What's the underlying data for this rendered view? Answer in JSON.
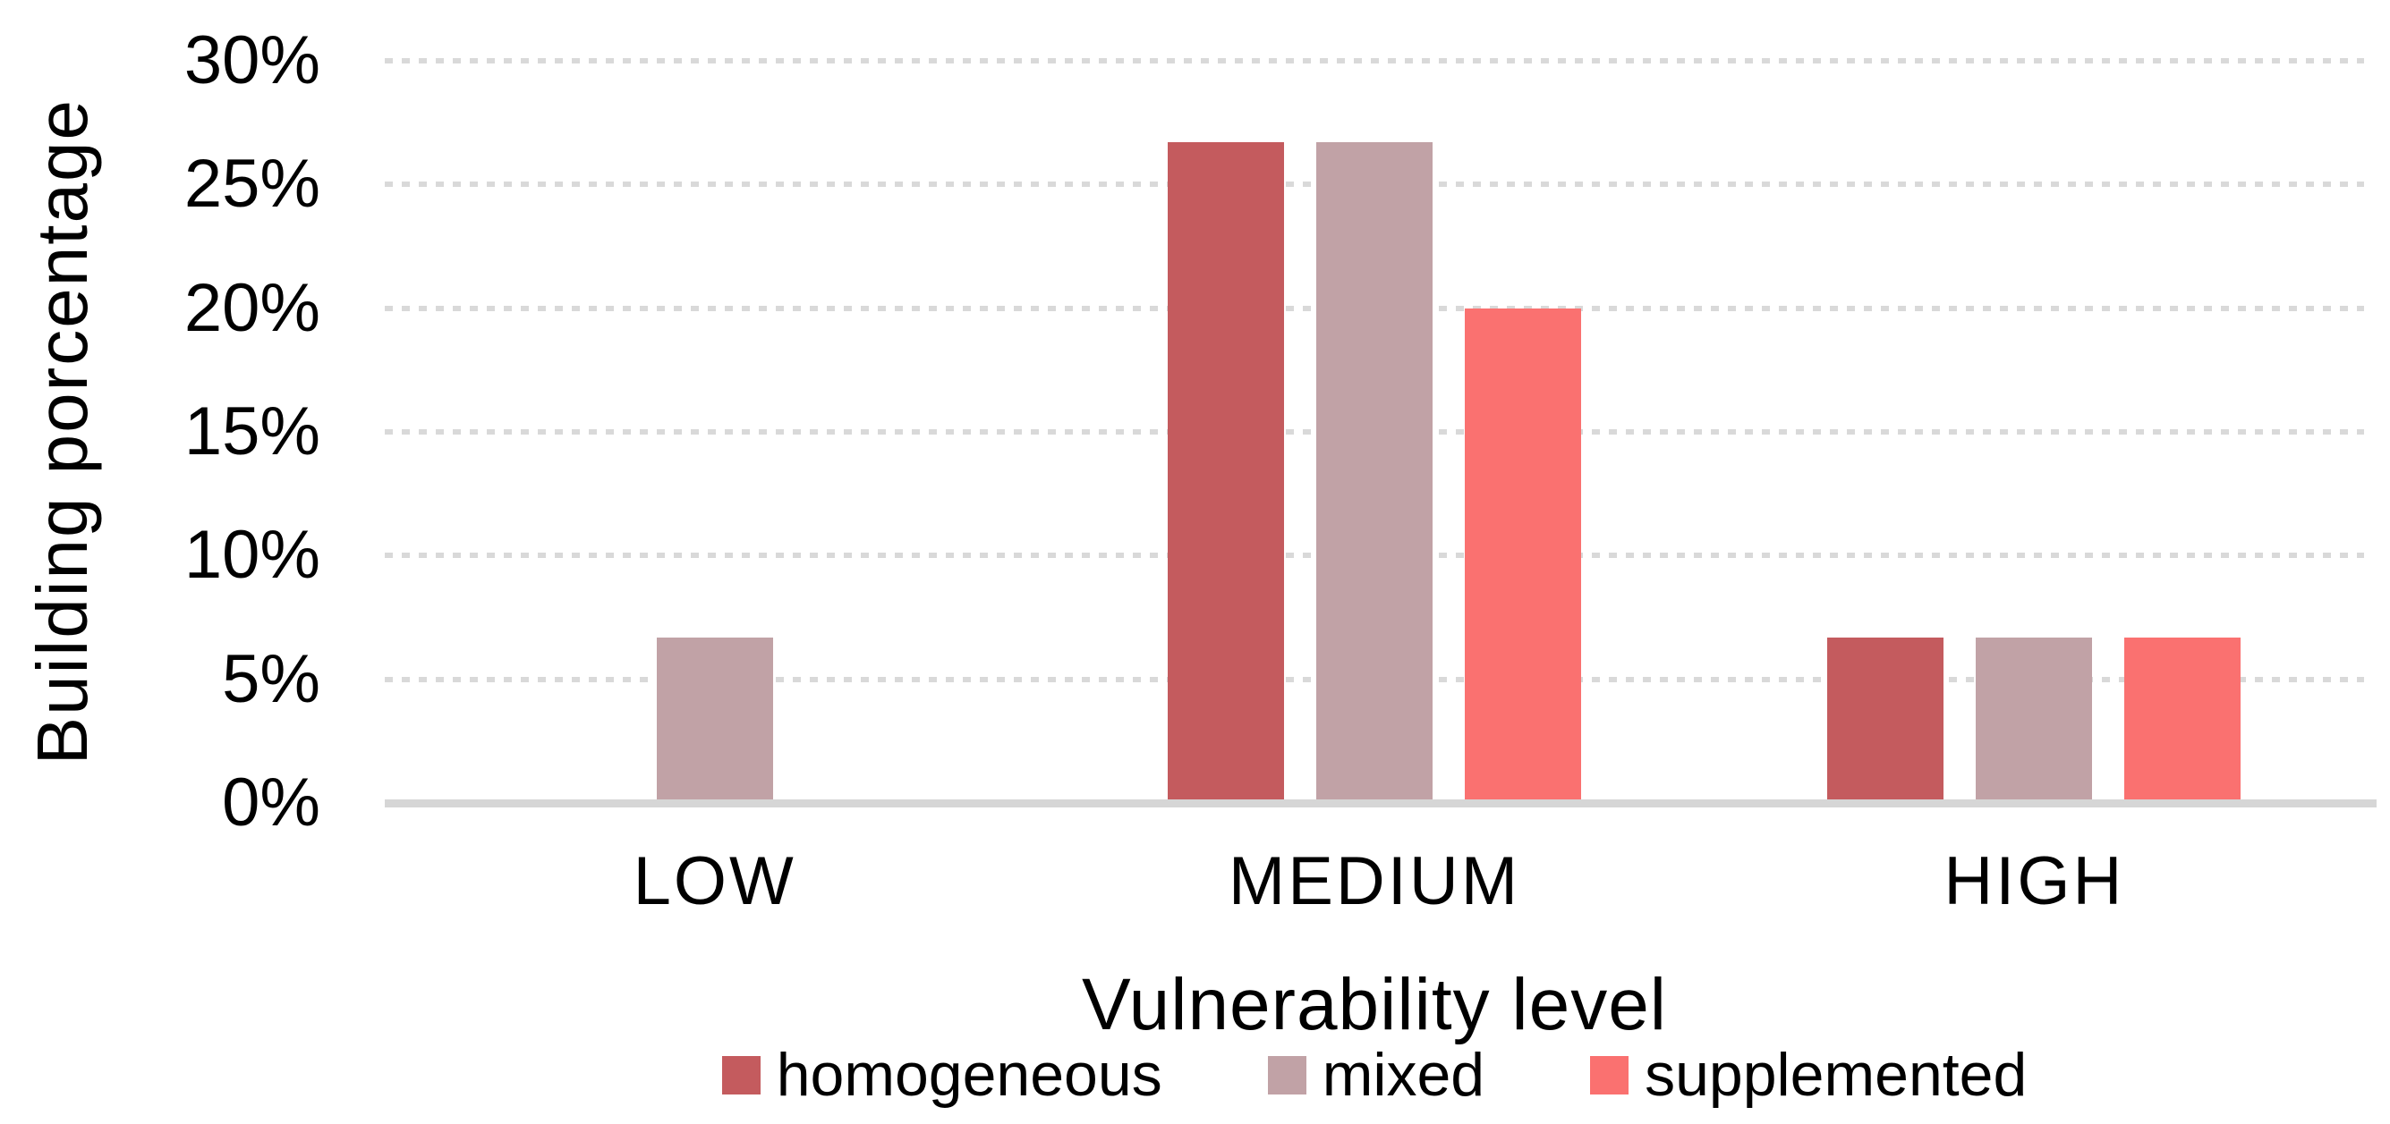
{
  "colors": {
    "background": "#FFFFFF",
    "gridline": "#D9D9D9",
    "axis_line": "#D6D6D6",
    "text": "#000000"
  },
  "chart_data": {
    "type": "bar",
    "title": "",
    "xlabel": "Vulnerability level",
    "ylabel": "Building porcentage",
    "categories": [
      "LOW",
      "MEDIUM",
      "HIGH"
    ],
    "series": [
      {
        "name": "homogeneous",
        "color": "#C45B5E",
        "values": [
          0,
          26.7,
          6.7
        ]
      },
      {
        "name": "mixed",
        "color": "#C1A2A6",
        "values": [
          6.7,
          26.7,
          6.7
        ]
      },
      {
        "name": "supplemented",
        "color": "#FA7170",
        "values": [
          0,
          20,
          6.7
        ]
      }
    ],
    "ylim": [
      0,
      30
    ],
    "yticks": [
      {
        "value": 0,
        "label": "0%"
      },
      {
        "value": 5,
        "label": "5%"
      },
      {
        "value": 10,
        "label": "10%"
      },
      {
        "value": 15,
        "label": "15%"
      },
      {
        "value": 20,
        "label": "20%"
      },
      {
        "value": 25,
        "label": "25%"
      },
      {
        "value": 30,
        "label": "30%"
      }
    ],
    "grid": "horizontal-dotted",
    "legend_position": "bottom"
  }
}
